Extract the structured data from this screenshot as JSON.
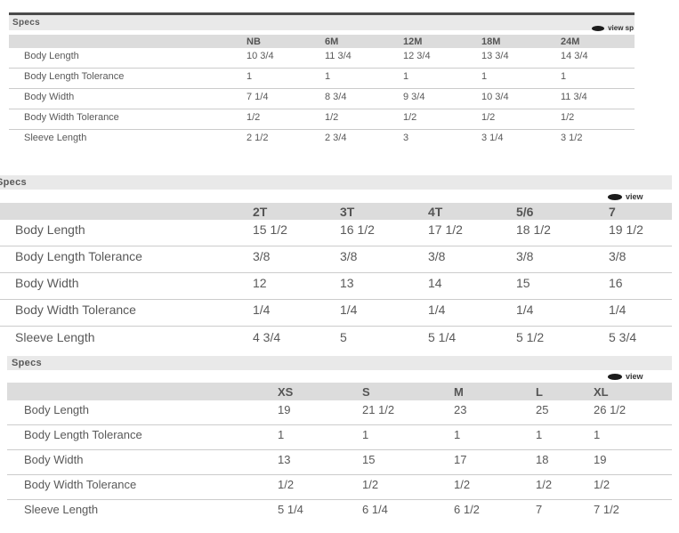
{
  "colors": {
    "top_line": "#4a4a4a",
    "specs_bar_bg": "#e9e9e9",
    "header_row_bg": "#dcdcdc",
    "row_divider": "#cccccc",
    "body_text": "#595959",
    "link_text": "#333333"
  },
  "tables": [
    {
      "title": "Specs",
      "view_link_label": "view sp",
      "columns": [
        "NB",
        "6M",
        "12M",
        "18M",
        "24M"
      ],
      "rows": [
        {
          "label": "Body Length",
          "values": [
            "10 3/4",
            "11 3/4",
            "12 3/4",
            "13 3/4",
            "14 3/4"
          ]
        },
        {
          "label": "Body Length Tolerance",
          "values": [
            "1",
            "1",
            "1",
            "1",
            "1"
          ]
        },
        {
          "label": "Body Width",
          "values": [
            "7 1/4",
            "8 3/4",
            "9 3/4",
            "10 3/4",
            "11 3/4"
          ]
        },
        {
          "label": "Body Width Tolerance",
          "values": [
            "1/2",
            "1/2",
            "1/2",
            "1/2",
            "1/2"
          ]
        },
        {
          "label": "Sleeve Length",
          "values": [
            "2 1/2",
            "2 3/4",
            "3",
            "3 1/4",
            "3 1/2"
          ]
        }
      ]
    },
    {
      "title": "Specs",
      "view_link_label": "view",
      "columns": [
        "2T",
        "3T",
        "4T",
        "5/6",
        "7"
      ],
      "rows": [
        {
          "label": "Body Length",
          "values": [
            "15 1/2",
            "16 1/2",
            "17 1/2",
            "18 1/2",
            "19 1/2"
          ]
        },
        {
          "label": "Body Length Tolerance",
          "values": [
            "3/8",
            "3/8",
            "3/8",
            "3/8",
            "3/8"
          ]
        },
        {
          "label": "Body Width",
          "values": [
            "12",
            "13",
            "14",
            "15",
            "16"
          ]
        },
        {
          "label": "Body Width Tolerance",
          "values": [
            "1/4",
            "1/4",
            "1/4",
            "1/4",
            "1/4"
          ]
        },
        {
          "label": "Sleeve Length",
          "values": [
            "4 3/4",
            "5",
            "5 1/4",
            "5 1/2",
            "5 3/4"
          ]
        }
      ]
    },
    {
      "title": "Specs",
      "view_link_label": "view",
      "columns": [
        "XS",
        "S",
        "M",
        "L",
        "XL"
      ],
      "rows": [
        {
          "label": "Body Length",
          "values": [
            "19",
            "21 1/2",
            "23",
            "25",
            "26 1/2"
          ]
        },
        {
          "label": "Body Length Tolerance",
          "values": [
            "1",
            "1",
            "1",
            "1",
            "1"
          ]
        },
        {
          "label": "Body Width",
          "values": [
            "13",
            "15",
            "17",
            "18",
            "19"
          ]
        },
        {
          "label": "Body Width Tolerance",
          "values": [
            "1/2",
            "1/2",
            "1/2",
            "1/2",
            "1/2"
          ]
        },
        {
          "label": "Sleeve Length",
          "values": [
            "5 1/4",
            "6 1/4",
            "6 1/2",
            "7",
            "7 1/2"
          ]
        }
      ]
    }
  ]
}
